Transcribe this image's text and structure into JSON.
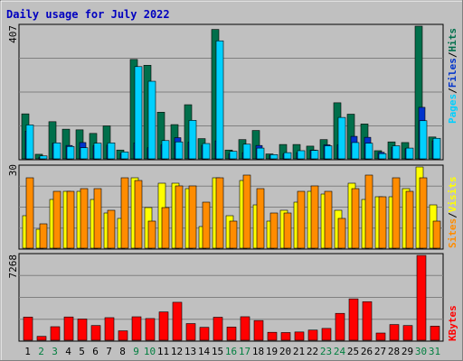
{
  "title": "Daily usage for July 2022",
  "colors": {
    "background": "#c0c0c0",
    "plot_bg": "#c0c0c0",
    "title": "#0000c0",
    "hits": "#006f4b",
    "files": "#0033cc",
    "pages": "#00d0ff",
    "visits": "#ffff00",
    "sites": "#ff8c00",
    "kbytes": "#ff0000",
    "weekend_label": "#007f3f"
  },
  "legend_top": [
    "Pages",
    "/",
    "Files",
    "/",
    "Hits"
  ],
  "legend_mid": [
    "Sites",
    "/",
    "Visits"
  ],
  "legend_bottom": [
    "KBytes"
  ],
  "ymax_top": "407",
  "ymax_mid": "30",
  "ymax_bottom": "7268",
  "chart_data": {
    "type": "bar",
    "x": [
      1,
      2,
      3,
      4,
      5,
      6,
      7,
      8,
      9,
      10,
      11,
      12,
      13,
      14,
      15,
      16,
      17,
      18,
      19,
      20,
      21,
      22,
      23,
      24,
      25,
      26,
      27,
      28,
      29,
      30,
      31
    ],
    "weekend_days": [
      2,
      3,
      9,
      10,
      16,
      17,
      23,
      24,
      30,
      31
    ],
    "panels": [
      {
        "name": "usage",
        "ymax": 407,
        "series": [
          {
            "name": "Hits",
            "values": [
              138,
              14,
              114,
              91,
              89,
              78,
              101,
              27,
              305,
              287,
              143,
              105,
              166,
              62,
              397,
              27,
              59,
              87,
              15,
              44,
              44,
              39,
              59,
              172,
              137,
              107,
              25,
              52,
              50,
              407,
              67
            ]
          },
          {
            "name": "Files",
            "values": [
              85,
              5,
              48,
              41,
              50,
              40,
              42,
              16,
              49,
              34,
              43,
              65,
              51,
              41,
              55,
              15,
              19,
              41,
              11,
              15,
              19,
              27,
              43,
              43,
              69,
              66,
              20,
              35,
              31,
              158,
              55
            ]
          },
          {
            "name": "Pages",
            "values": [
              104,
              9,
              49,
              38,
              34,
              48,
              49,
              21,
              283,
              238,
              56,
              52,
              118,
              47,
              362,
              23,
              45,
              33,
              13,
              19,
              25,
              26,
              40,
              127,
              50,
              48,
              16,
              40,
              33,
              117,
              63
            ]
          }
        ]
      },
      {
        "name": "visitors",
        "ymax": 30,
        "series": [
          {
            "name": "Visits",
            "values": [
              12,
              7,
              18,
              21,
              21,
              18,
              13,
              11,
              26,
              15,
              24,
              24,
              22,
              8,
              26,
              12,
              25,
              16,
              10,
              14,
              17,
              21,
              20,
              14,
              24,
              18,
              19,
              19,
              22,
              30,
              16
            ]
          },
          {
            "name": "Sites",
            "values": [
              26,
              9,
              21,
              21,
              22,
              22,
              14,
              26,
              25,
              10,
              15,
              23,
              23,
              17,
              26,
              10,
              27,
              22,
              13,
              13,
              21,
              23,
              21,
              11,
              22,
              27,
              19,
              26,
              21,
              26,
              10
            ]
          }
        ]
      },
      {
        "name": "kbytes",
        "ymax": 7268,
        "series": [
          {
            "name": "KBytes",
            "values": [
              1988,
              333,
              1160,
              1994,
              1818,
              1262,
              1935,
              807,
              2010,
              1861,
              2426,
              3253,
              1428,
              1106,
              1971,
              1129,
              2014,
              1689,
              681,
              660,
              707,
              871,
              1013,
              2303,
              3545,
              3303,
              618,
              1345,
              1262,
              7268,
              1206
            ]
          }
        ]
      }
    ]
  }
}
